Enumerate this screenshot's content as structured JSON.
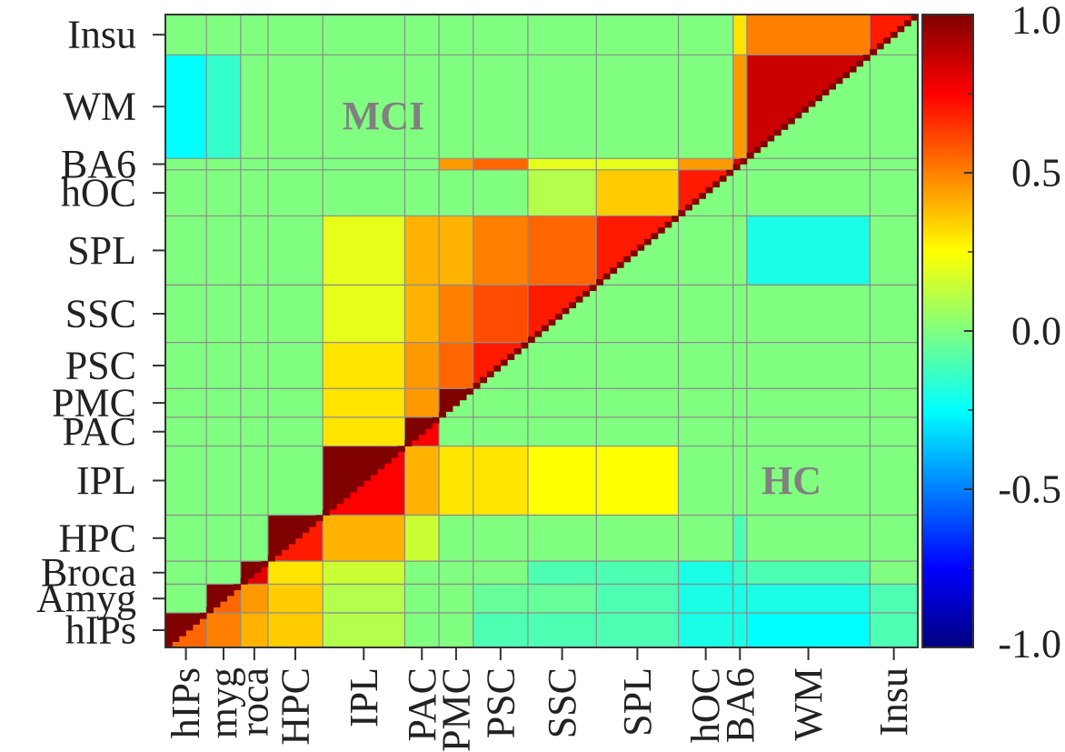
{
  "chart_data": {
    "type": "heatmap",
    "title": "",
    "xlabel": "",
    "ylabel": "",
    "regions": [
      {
        "name": "hIPs",
        "x_tick_label": "hIPs",
        "y_tick_label": "hIPs"
      },
      {
        "name": "Amyg",
        "x_tick_label": "myg",
        "y_tick_label": "Amyg"
      },
      {
        "name": "Broca",
        "x_tick_label": "roca",
        "y_tick_label": "Broca"
      },
      {
        "name": "HPC",
        "x_tick_label": "HPC",
        "y_tick_label": "HPC"
      },
      {
        "name": "IPL",
        "x_tick_label": "IPL",
        "y_tick_label": "IPL"
      },
      {
        "name": "PAC",
        "x_tick_label": "PAC",
        "y_tick_label": "PAC"
      },
      {
        "name": "PMC",
        "x_tick_label": "PMC",
        "y_tick_label": "PMC"
      },
      {
        "name": "PSC",
        "x_tick_label": "PSC",
        "y_tick_label": "PSC"
      },
      {
        "name": "SSC",
        "x_tick_label": "SSC",
        "y_tick_label": "SSC"
      },
      {
        "name": "SPL",
        "x_tick_label": "SPL",
        "y_tick_label": "SPL"
      },
      {
        "name": "hOC",
        "x_tick_label": "hOC",
        "y_tick_label": "hOC"
      },
      {
        "name": "BA6",
        "x_tick_label": "BA6",
        "y_tick_label": "BA6"
      },
      {
        "name": "WM",
        "x_tick_label": "WM",
        "y_tick_label": "WM"
      },
      {
        "name": "Insu",
        "x_tick_label": "Insu",
        "y_tick_label": "Insu"
      }
    ],
    "region_sizes": [
      6,
      5,
      4,
      8,
      12,
      5,
      5,
      8,
      10,
      12,
      8,
      2,
      18,
      7
    ],
    "upper_triangle_group": "MCI",
    "lower_triangle_group": "HC",
    "mci_block_values": [
      [
        1.0,
        0.0,
        0.0,
        0.0,
        0.0,
        0.0,
        0.0,
        0.0,
        0.0,
        0.0,
        0.0,
        0.0,
        -0.25,
        0.0
      ],
      [
        0.0,
        1.0,
        0.0,
        0.0,
        0.0,
        0.0,
        0.0,
        0.0,
        0.0,
        0.0,
        0.0,
        0.0,
        -0.15,
        0.0
      ],
      [
        0.0,
        0.0,
        1.0,
        0.0,
        0.0,
        0.0,
        0.0,
        0.0,
        0.0,
        0.0,
        0.0,
        0.0,
        0.0,
        0.0
      ],
      [
        0.0,
        0.0,
        0.0,
        1.0,
        0.0,
        0.0,
        0.0,
        0.0,
        0.0,
        0.0,
        0.0,
        0.0,
        0.0,
        0.0
      ],
      [
        0.0,
        0.0,
        0.0,
        0.0,
        1.0,
        0.3,
        0.3,
        0.3,
        0.2,
        0.2,
        0.0,
        0.0,
        0.0,
        0.0
      ],
      [
        0.0,
        0.0,
        0.0,
        0.0,
        0.3,
        1.0,
        0.45,
        0.45,
        0.4,
        0.4,
        0.0,
        0.0,
        0.0,
        0.0
      ],
      [
        0.0,
        0.0,
        0.0,
        0.0,
        0.3,
        0.45,
        1.0,
        0.55,
        0.5,
        0.4,
        0.0,
        0.45,
        0.0,
        0.0
      ],
      [
        0.0,
        0.0,
        0.0,
        0.0,
        0.3,
        0.45,
        0.55,
        0.7,
        0.6,
        0.5,
        0.0,
        0.55,
        0.0,
        0.0
      ],
      [
        0.0,
        0.0,
        0.0,
        0.0,
        0.2,
        0.4,
        0.5,
        0.6,
        0.7,
        0.55,
        0.1,
        0.2,
        0.0,
        0.0
      ],
      [
        0.0,
        0.0,
        0.0,
        0.0,
        0.2,
        0.4,
        0.4,
        0.5,
        0.55,
        0.7,
        0.35,
        0.2,
        0.0,
        0.0
      ],
      [
        0.0,
        0.0,
        0.0,
        0.0,
        0.0,
        0.0,
        0.0,
        0.0,
        0.1,
        0.35,
        0.7,
        0.45,
        0.0,
        0.0
      ],
      [
        0.0,
        0.0,
        0.0,
        0.0,
        0.0,
        0.0,
        0.45,
        0.55,
        0.2,
        0.2,
        0.45,
        0.8,
        0.45,
        0.3
      ],
      [
        -0.25,
        -0.15,
        0.0,
        0.0,
        0.0,
        0.0,
        0.0,
        0.0,
        0.0,
        0.0,
        0.0,
        0.45,
        0.85,
        0.5
      ],
      [
        0.0,
        0.0,
        0.0,
        0.0,
        0.0,
        0.0,
        0.0,
        0.0,
        0.0,
        0.0,
        0.0,
        0.3,
        0.5,
        0.7
      ]
    ],
    "hc_block_values": [
      [
        0.55,
        0.5,
        0.4,
        0.35,
        0.1,
        0.0,
        0.0,
        -0.1,
        -0.1,
        -0.1,
        -0.2,
        -0.2,
        -0.25,
        -0.1
      ],
      [
        0.5,
        0.55,
        0.45,
        0.35,
        0.1,
        0.0,
        0.0,
        -0.05,
        -0.05,
        -0.1,
        -0.2,
        -0.2,
        -0.2,
        -0.1
      ],
      [
        0.4,
        0.45,
        0.8,
        0.3,
        0.15,
        0.0,
        0.0,
        0.0,
        -0.1,
        -0.1,
        -0.2,
        -0.15,
        -0.1,
        0.0
      ],
      [
        0.35,
        0.35,
        0.3,
        0.7,
        0.4,
        0.15,
        0.0,
        0.0,
        0.0,
        0.0,
        0.0,
        -0.1,
        0.0,
        0.0
      ],
      [
        0.1,
        0.1,
        0.15,
        0.4,
        0.75,
        0.4,
        0.3,
        0.3,
        0.25,
        0.25,
        0.0,
        0.0,
        0.0,
        0.0
      ],
      [
        0.0,
        0.0,
        0.0,
        0.15,
        0.4,
        0.75,
        0.0,
        0.0,
        0.0,
        0.0,
        0.0,
        0.0,
        0.0,
        0.0
      ],
      [
        0.0,
        0.0,
        0.0,
        0.0,
        0.3,
        0.0,
        0.0,
        0.0,
        0.0,
        0.0,
        0.0,
        0.0,
        0.0,
        0.0
      ],
      [
        -0.1,
        -0.05,
        0.0,
        0.0,
        0.3,
        0.0,
        0.0,
        0.0,
        0.0,
        0.0,
        0.0,
        0.0,
        0.0,
        0.0
      ],
      [
        -0.1,
        -0.05,
        -0.1,
        0.0,
        0.25,
        0.0,
        0.0,
        0.0,
        0.0,
        0.0,
        0.0,
        0.0,
        0.0,
        0.0
      ],
      [
        -0.1,
        -0.1,
        -0.1,
        0.0,
        0.25,
        0.0,
        0.0,
        0.0,
        0.0,
        0.0,
        0.0,
        0.0,
        -0.2,
        0.0
      ],
      [
        -0.2,
        -0.2,
        -0.2,
        0.0,
        0.0,
        0.0,
        0.0,
        0.0,
        0.0,
        0.0,
        0.0,
        0.0,
        0.0,
        0.0
      ],
      [
        -0.2,
        -0.2,
        -0.15,
        -0.1,
        0.0,
        0.0,
        0.0,
        0.0,
        0.0,
        0.0,
        0.0,
        0.0,
        0.0,
        0.0
      ],
      [
        -0.25,
        -0.2,
        -0.1,
        0.0,
        0.0,
        0.0,
        0.0,
        0.0,
        0.0,
        -0.2,
        0.0,
        0.0,
        0.0,
        0.0
      ],
      [
        -0.1,
        -0.1,
        0.0,
        0.0,
        0.0,
        0.0,
        0.0,
        0.0,
        0.0,
        0.0,
        0.0,
        0.0,
        0.0,
        0.0
      ]
    ],
    "diagonal_value": 1.0,
    "value_range": [
      -1.0,
      1.0
    ],
    "colormap": "jet",
    "colorbar_ticks": [
      1.0,
      0.5,
      0.0,
      -0.5,
      -1.0
    ],
    "colorbar_tick_labels": [
      "1.0",
      "0.5",
      "0.0",
      "-0.5",
      "-1.0"
    ],
    "annotations": [
      "MCI",
      "HC"
    ],
    "grid": true,
    "grid_color": "#8c8c8c",
    "annotation_color": "#808080"
  }
}
